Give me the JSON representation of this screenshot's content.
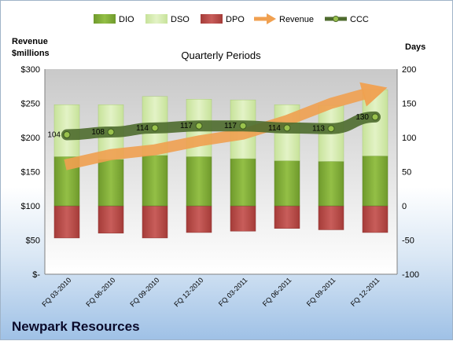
{
  "company": "Newpark Resources",
  "chart_data": {
    "type": "bar",
    "title": "Quarterly Periods",
    "left_axis_title": [
      "Revenue",
      "$millions"
    ],
    "right_axis_title": "Days",
    "left_ticks": [
      "$-",
      "$50",
      "$100",
      "$150",
      "$200",
      "$250",
      "$300"
    ],
    "left_ylim": [
      0,
      300
    ],
    "right_ticks": [
      "-100",
      "-50",
      "0",
      "50",
      "100",
      "150",
      "200"
    ],
    "right_ylim": [
      -100,
      200
    ],
    "categories": [
      "FQ 03-2010",
      "FQ 06-2010",
      "FQ 09-2010",
      "FQ 12-2010",
      "FQ 03-2011",
      "FQ 06-2011",
      "FQ 09-2011",
      "FQ 12-2011"
    ],
    "series": [
      {
        "name": "DIO",
        "type": "stacked-bar",
        "axis": "right",
        "color": "#8cb33e",
        "values": [
          72,
          68,
          74,
          72,
          69,
          66,
          65,
          73
        ]
      },
      {
        "name": "DSO",
        "type": "stacked-bar",
        "axis": "right",
        "color": "#d6edb0",
        "values": [
          76,
          80,
          86,
          84,
          86,
          82,
          82,
          97
        ]
      },
      {
        "name": "DPO",
        "type": "stacked-bar",
        "axis": "right",
        "color": "#c0504d",
        "values": [
          -47,
          -40,
          -47,
          -39,
          -37,
          -33,
          -35,
          -39
        ]
      },
      {
        "name": "Revenue",
        "type": "arrow",
        "axis": "left",
        "color": "#f0a050",
        "values": [
          160,
          175,
          182,
          195,
          205,
          225,
          250,
          268
        ]
      },
      {
        "name": "CCC",
        "type": "line",
        "axis": "right",
        "color": "#4e6b2e",
        "values": [
          104,
          108,
          114,
          117,
          117,
          114,
          113,
          130
        ]
      }
    ],
    "grid": false,
    "legend": "top"
  }
}
